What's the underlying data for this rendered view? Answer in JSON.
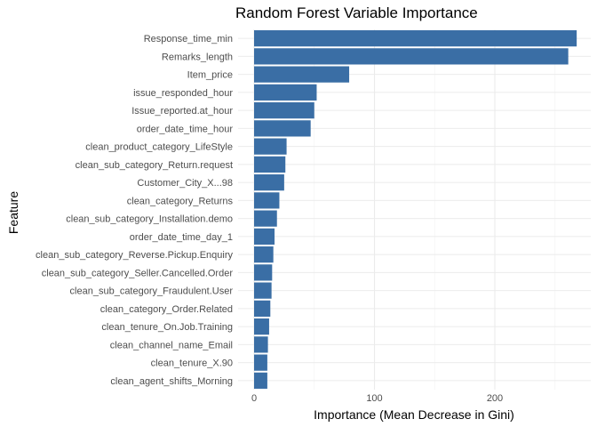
{
  "chart_data": {
    "type": "bar",
    "orientation": "horizontal",
    "title": "Random Forest Variable Importance",
    "xlabel": "Importance (Mean Decrease in Gini)",
    "ylabel": "Feature",
    "xlim": [
      0,
      270
    ],
    "xticks": [
      0,
      100,
      200
    ],
    "grid": true,
    "bar_color": "#3a6ea5",
    "categories": [
      "Response_time_min",
      "Remarks_length",
      "Item_price",
      "issue_responded_hour",
      "Issue_reported.at_hour",
      "order_date_time_hour",
      "clean_product_category_LifeStyle",
      "clean_sub_category_Return.request",
      "Customer_City_X...98",
      "clean_category_Returns",
      "clean_sub_category_Installation.demo",
      "order_date_time_day_1",
      "clean_sub_category_Reverse.Pickup.Enquiry",
      "clean_sub_category_Seller.Cancelled.Order",
      "clean_sub_category_Fraudulent.User",
      "clean_category_Order.Related",
      "clean_tenure_On.Job.Training",
      "clean_channel_name_Email",
      "clean_tenure_X.90",
      "clean_agent_shifts_Morning"
    ],
    "values": [
      268,
      261,
      79,
      52,
      50,
      47,
      27,
      26,
      25,
      21,
      19,
      17,
      16,
      15,
      14.5,
      13.5,
      12.5,
      11.5,
      11,
      11
    ]
  }
}
